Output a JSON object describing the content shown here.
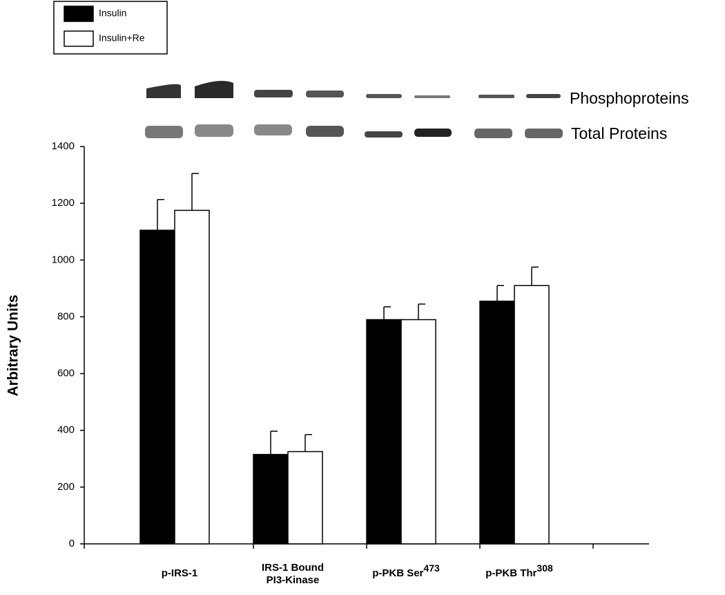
{
  "chart_data": {
    "type": "bar",
    "categories": [
      "p-IRS-1",
      "IRS-1 Bound\nPI3-Kinase",
      "p-PKB Ser",
      "p-PKB Thr"
    ],
    "category_superscripts": [
      null,
      null,
      "473",
      "308"
    ],
    "series": [
      {
        "name": "Insulin",
        "color": "#000000",
        "values": [
          1105,
          315,
          790,
          855
        ],
        "errors": [
          108,
          82,
          45,
          55
        ]
      },
      {
        "name": "Insulin+Re",
        "color": "#ffffff",
        "values": [
          1175,
          325,
          790,
          910
        ],
        "errors": [
          130,
          60,
          55,
          65
        ]
      }
    ],
    "y_label": "Arbitrary Units",
    "annotations": [
      "Phosphoproteins",
      "Total Proteins"
    ],
    "ylim": [
      0,
      1400
    ],
    "yticks": [
      0,
      200,
      400,
      600,
      800,
      1000,
      1200,
      1400
    ],
    "grid": false,
    "legend": "top-left"
  }
}
